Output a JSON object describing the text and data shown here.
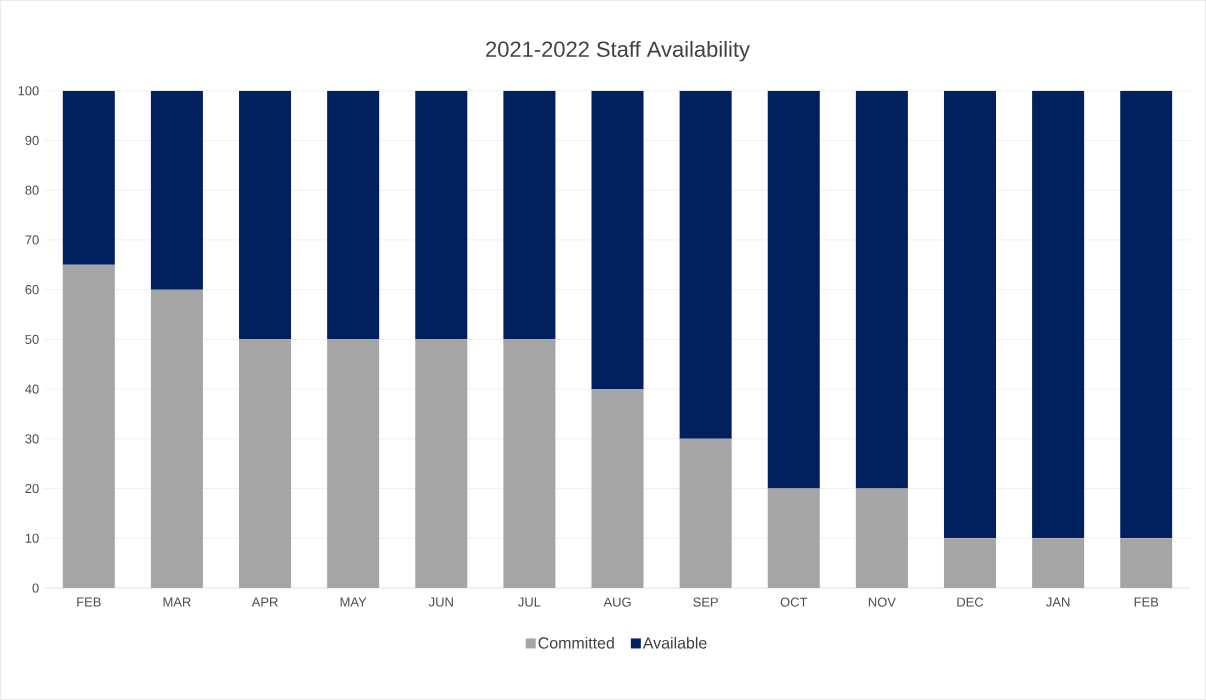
{
  "chart_data": {
    "type": "bar",
    "title": "2021-2022 Staff Availability",
    "stacked": true,
    "categories": [
      "FEB",
      "MAR",
      "APR",
      "MAY",
      "JUN",
      "JUL",
      "AUG",
      "SEP",
      "OCT",
      "NOV",
      "DEC",
      "JAN",
      "FEB"
    ],
    "series": [
      {
        "name": "Committed",
        "color": "#a5a5a5",
        "values": [
          65,
          60,
          50,
          50,
          50,
          50,
          40,
          30,
          20,
          20,
          10,
          10,
          10
        ]
      },
      {
        "name": "Available",
        "color": "#002060",
        "values": [
          35,
          40,
          50,
          50,
          50,
          50,
          60,
          70,
          80,
          80,
          90,
          90,
          90
        ]
      }
    ],
    "ylim": [
      0,
      100
    ],
    "yticks": [
      0,
      10,
      20,
      30,
      40,
      50,
      60,
      70,
      80,
      90,
      100
    ],
    "grid": "y",
    "legend": "bottom"
  }
}
